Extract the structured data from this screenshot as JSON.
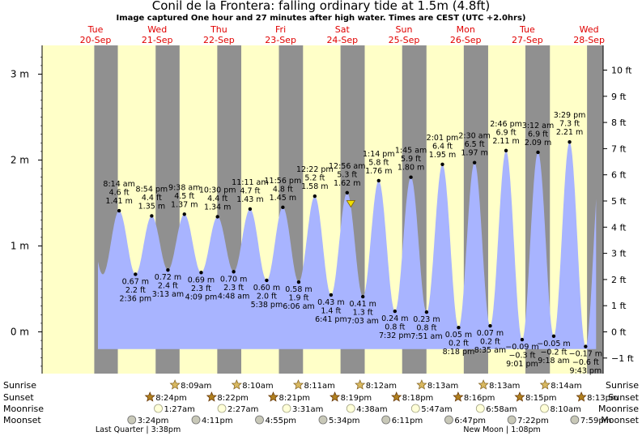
{
  "chart_data": {
    "type": "area",
    "title": "Conil de la Frontera: falling  ordinary tide at 1.5m (4.8ft)",
    "subtitle": "Image captured One hour and 27 minutes after high water. Times are CEST (UTC +2.0hrs)",
    "ylabel_left": "m",
    "ylabel_right": "ft",
    "ylim_m": [
      -0.42,
      3.3
    ],
    "y_ticks_m": [
      "0 m",
      "1 m",
      "2 m",
      "3 m"
    ],
    "y_ticks_ft": [
      "−1 ft",
      "0 ft",
      "1 ft",
      "2 ft",
      "3 ft",
      "4 ft",
      "5 ft",
      "6 ft",
      "7 ft",
      "8 ft",
      "9 ft",
      "10 ft"
    ],
    "days": [
      {
        "name": "Tue",
        "date": "20-Sep"
      },
      {
        "name": "Wed",
        "date": "21-Sep"
      },
      {
        "name": "Thu",
        "date": "22-Sep"
      },
      {
        "name": "Fri",
        "date": "23-Sep"
      },
      {
        "name": "Sat",
        "date": "24-Sep"
      },
      {
        "name": "Sun",
        "date": "25-Sep"
      },
      {
        "name": "Mon",
        "date": "26-Sep"
      },
      {
        "name": "Tue",
        "date": "27-Sep"
      },
      {
        "name": "Wed",
        "date": "28-Sep"
      }
    ],
    "tides": [
      {
        "type": "high",
        "time": "8:14 am",
        "ft": "4.6 ft",
        "m": "1.41 m",
        "day": 0.343,
        "value": 1.41
      },
      {
        "type": "low",
        "time": "2:36 pm",
        "ft": "2.2 ft",
        "m": "0.67 m",
        "day": 0.608,
        "value": 0.67
      },
      {
        "type": "high",
        "time": "8:54 pm",
        "ft": "4.4 ft",
        "m": "1.35 m",
        "day": 0.871,
        "value": 1.35
      },
      {
        "type": "low",
        "time": "3:13 am",
        "ft": "2.4 ft",
        "m": "0.72 m",
        "day": 1.134,
        "value": 0.72
      },
      {
        "type": "high",
        "time": "9:38 am",
        "ft": "4.5 ft",
        "m": "1.37 m",
        "day": 1.401,
        "value": 1.37
      },
      {
        "type": "low",
        "time": "4:09 pm",
        "ft": "2.3 ft",
        "m": "0.69 m",
        "day": 1.673,
        "value": 0.69
      },
      {
        "type": "high",
        "time": "10:30 pm",
        "ft": "4.4 ft",
        "m": "1.34 m",
        "day": 1.938,
        "value": 1.34
      },
      {
        "type": "low",
        "time": "4:48 am",
        "ft": "2.3 ft",
        "m": "0.70 m",
        "day": 2.2,
        "value": 0.7
      },
      {
        "type": "high",
        "time": "11:11 am",
        "ft": "4.7 ft",
        "m": "1.43 m",
        "day": 2.466,
        "value": 1.43
      },
      {
        "type": "low",
        "time": "5:38 pm",
        "ft": "2.0 ft",
        "m": "0.60 m",
        "day": 2.735,
        "value": 0.6
      },
      {
        "type": "high",
        "time": "11:56 pm",
        "ft": "4.8 ft",
        "m": "1.45 m",
        "day": 2.997,
        "value": 1.45
      },
      {
        "type": "low",
        "time": "6:06 am",
        "ft": "1.9 ft",
        "m": "0.58 m",
        "day": 3.254,
        "value": 0.58
      },
      {
        "type": "high",
        "time": "12:22 pm",
        "ft": "5.2 ft",
        "m": "1.58 m",
        "day": 3.515,
        "value": 1.58
      },
      {
        "type": "low",
        "time": "6:41 pm",
        "ft": "1.4 ft",
        "m": "0.43 m",
        "day": 3.778,
        "value": 0.43
      },
      {
        "type": "high",
        "time": "12:56 am",
        "ft": "5.3 ft",
        "m": "1.62 m",
        "day": 4.039,
        "value": 1.62
      },
      {
        "type": "low",
        "time": "7:03 am",
        "ft": "1.3 ft",
        "m": "0.41 m",
        "day": 4.294,
        "value": 0.41
      },
      {
        "type": "high",
        "time": "1:14 pm",
        "ft": "5.8 ft",
        "m": "1.76 m",
        "day": 4.551,
        "value": 1.76
      },
      {
        "type": "low",
        "time": "7:32 pm",
        "ft": "0.8 ft",
        "m": "0.24 m",
        "day": 4.814,
        "value": 0.24
      },
      {
        "type": "high",
        "time": "1:45 am",
        "ft": "5.9 ft",
        "m": "1.80 m",
        "day": 5.073,
        "value": 1.8
      },
      {
        "type": "low",
        "time": "7:51 am",
        "ft": "0.8 ft",
        "m": "0.23 m",
        "day": 5.327,
        "value": 0.23
      },
      {
        "type": "high",
        "time": "2:01 pm",
        "ft": "6.4 ft",
        "m": "1.95 m",
        "day": 5.584,
        "value": 1.95
      },
      {
        "type": "low",
        "time": "8:18 pm",
        "ft": "0.2 ft",
        "m": "0.05 m",
        "day": 5.846,
        "value": 0.05
      },
      {
        "type": "high",
        "time": "2:30 am",
        "ft": "6.5 ft",
        "m": "1.97 m",
        "day": 6.104,
        "value": 1.97
      },
      {
        "type": "low",
        "time": "8:35 am",
        "ft": "0.2 ft",
        "m": "0.07 m",
        "day": 6.358,
        "value": 0.07
      },
      {
        "type": "high",
        "time": "2:46 pm",
        "ft": "6.9 ft",
        "m": "2.11 m",
        "day": 6.615,
        "value": 2.11
      },
      {
        "type": "low",
        "time": "9:01 pm",
        "ft": "−0.3 ft",
        "m": "−0.09 m",
        "day": 6.876,
        "value": -0.09
      },
      {
        "type": "high",
        "time": "3:12 am",
        "ft": "6.9 ft",
        "m": "2.09 m",
        "day": 7.133,
        "value": 2.09
      },
      {
        "type": "low",
        "time": "9:18 am",
        "ft": "−0.2 ft",
        "m": "−0.05 m",
        "day": 7.388,
        "value": -0.05
      },
      {
        "type": "high",
        "time": "3:29 pm",
        "ft": "7.3 ft",
        "m": "2.21 m",
        "day": 7.645,
        "value": 2.21
      },
      {
        "type": "low",
        "time": "9:43 pm",
        "ft": "−0.6 ft",
        "m": "−0.17 m",
        "day": 7.905,
        "value": -0.17
      }
    ],
    "nights": [
      {
        "start": -0.06,
        "end": 0.322
      },
      {
        "start": 0.935,
        "end": 1.323
      },
      {
        "start": 1.934,
        "end": 2.323
      },
      {
        "start": 2.933,
        "end": 3.324
      },
      {
        "start": 3.932,
        "end": 4.324
      },
      {
        "start": 4.931,
        "end": 5.325
      },
      {
        "start": 5.93,
        "end": 6.325
      },
      {
        "start": 6.929,
        "end": 7.326
      },
      {
        "start": 7.928,
        "end": 8.3
      }
    ],
    "current": {
      "day": 4.099,
      "value": 1.5
    }
  },
  "astro": {
    "row_labels": [
      "Sunrise",
      "Sunset",
      "Moonrise",
      "Moonset"
    ],
    "events": [
      {
        "row": 0,
        "day": 1.34,
        "label": "8:09am",
        "kind": "sunrise"
      },
      {
        "row": 0,
        "day": 2.34,
        "label": "8:10am",
        "kind": "sunrise"
      },
      {
        "row": 0,
        "day": 3.34,
        "label": "8:11am",
        "kind": "sunrise"
      },
      {
        "row": 0,
        "day": 4.34,
        "label": "8:12am",
        "kind": "sunrise"
      },
      {
        "row": 0,
        "day": 5.34,
        "label": "8:13am",
        "kind": "sunrise"
      },
      {
        "row": 0,
        "day": 6.34,
        "label": "8:13am",
        "kind": "sunrise"
      },
      {
        "row": 0,
        "day": 7.34,
        "label": "8:14am",
        "kind": "sunrise"
      },
      {
        "row": 1,
        "day": 0.935,
        "label": "8:24pm",
        "kind": "sunset"
      },
      {
        "row": 1,
        "day": 1.934,
        "label": "8:22pm",
        "kind": "sunset"
      },
      {
        "row": 1,
        "day": 2.933,
        "label": "8:21pm",
        "kind": "sunset"
      },
      {
        "row": 1,
        "day": 3.932,
        "label": "8:19pm",
        "kind": "sunset"
      },
      {
        "row": 1,
        "day": 4.931,
        "label": "8:18pm",
        "kind": "sunset"
      },
      {
        "row": 1,
        "day": 5.93,
        "label": "8:16pm",
        "kind": "sunset"
      },
      {
        "row": 1,
        "day": 6.929,
        "label": "8:15pm",
        "kind": "sunset"
      },
      {
        "row": 1,
        "day": 7.928,
        "label": "8:13pm",
        "kind": "sunset"
      },
      {
        "row": 2,
        "day": 1.07,
        "label": "1:27am",
        "kind": "moonrise"
      },
      {
        "row": 2,
        "day": 2.1,
        "label": "2:27am",
        "kind": "moonrise"
      },
      {
        "row": 2,
        "day": 3.15,
        "label": "3:31am",
        "kind": "moonrise"
      },
      {
        "row": 2,
        "day": 4.19,
        "label": "4:38am",
        "kind": "moonrise"
      },
      {
        "row": 2,
        "day": 5.24,
        "label": "5:47am",
        "kind": "moonrise"
      },
      {
        "row": 2,
        "day": 6.29,
        "label": "6:58am",
        "kind": "moonrise"
      },
      {
        "row": 2,
        "day": 7.33,
        "label": "8:10am",
        "kind": "moonrise"
      },
      {
        "row": 3,
        "day": 0.64,
        "label": "3:24pm",
        "kind": "moonset"
      },
      {
        "row": 3,
        "day": 1.68,
        "label": "4:11pm",
        "kind": "moonset"
      },
      {
        "row": 3,
        "day": 2.71,
        "label": "4:55pm",
        "kind": "moonset"
      },
      {
        "row": 3,
        "day": 3.74,
        "label": "5:34pm",
        "kind": "moonset"
      },
      {
        "row": 3,
        "day": 4.76,
        "label": "6:11pm",
        "kind": "moonset"
      },
      {
        "row": 3,
        "day": 5.78,
        "label": "6:47pm",
        "kind": "moonset"
      },
      {
        "row": 3,
        "day": 6.8,
        "label": "7:22pm",
        "kind": "moonset"
      },
      {
        "row": 3,
        "day": 7.82,
        "label": "7:59pm",
        "kind": "moonset"
      }
    ],
    "phases": [
      {
        "label": "Last Quarter | 3:38pm",
        "day": 0.65
      },
      {
        "label": "New Moon | 1:08pm",
        "day": 6.55
      }
    ]
  },
  "colors": {
    "day_bg": "#ffffc8",
    "night_bg": "#909090",
    "water": "#a8b4ff",
    "sun": "#c8a040",
    "moon": "#c8c8a0",
    "day_label": "#e00000",
    "current_marker": "#f0e000"
  }
}
